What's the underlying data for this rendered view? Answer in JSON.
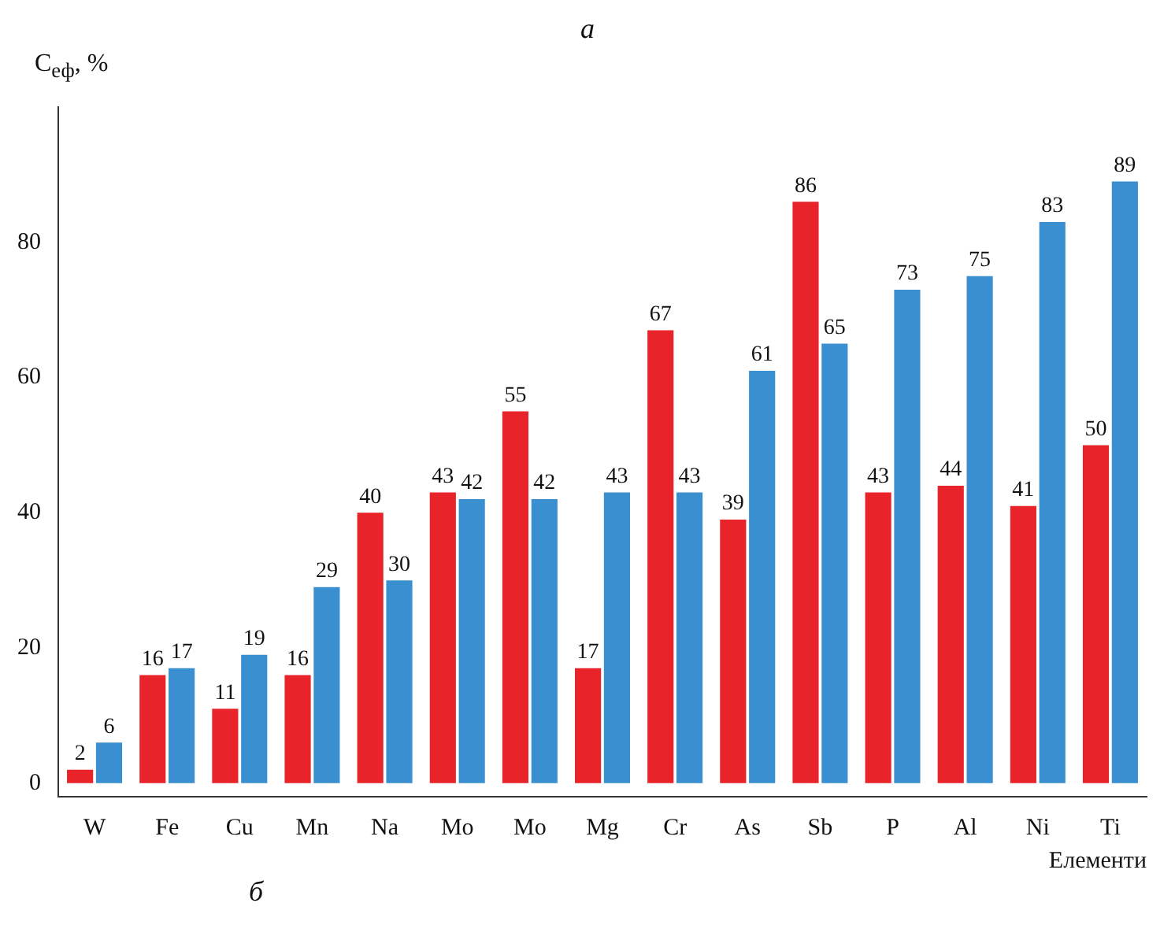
{
  "chart_data": {
    "type": "bar",
    "title": "а",
    "ylabel": "C$_{еф}$, %",
    "xlabel": "Елементи",
    "categories": [
      "W",
      "Fe",
      "Cu",
      "Mn",
      "Na",
      "Mo",
      "Mo",
      "Mg",
      "Cr",
      "As",
      "Sb",
      "P",
      "Al",
      "Ni",
      "Ti"
    ],
    "series": [
      {
        "color": "#e8242a",
        "values": [
          2,
          16,
          11,
          16,
          40,
          43,
          55,
          17,
          67,
          39,
          86,
          43,
          44,
          41,
          50
        ]
      },
      {
        "color": "#3a8fd0",
        "values": [
          6,
          17,
          19,
          29,
          30,
          42,
          42,
          43,
          43,
          61,
          65,
          73,
          75,
          83,
          89
        ]
      }
    ],
    "ylim": [
      -2,
      100
    ],
    "yticks": [
      0,
      20,
      40,
      60,
      80
    ],
    "grid": false,
    "legend": false,
    "data_labels": true,
    "annotations": [
      "б"
    ]
  }
}
